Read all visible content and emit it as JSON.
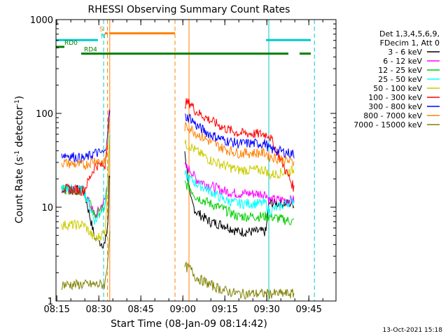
{
  "chart_data": {
    "type": "line",
    "title": "RHESSI Observing Summary Count Rates",
    "xlabel": "Start Time (08-Jan-09 08:14:42)",
    "ylabel_main": "Count Rate (s",
    "ylabel_sup1": "-1",
    "ylabel_mid": " detector",
    "ylabel_sup2": "-1",
    "ylabel_end": ")",
    "xlim": [
      0,
      100
    ],
    "ylim": [
      1,
      1000
    ],
    "yscale": "log",
    "x_ticks": [
      {
        "t": 0.3,
        "label": "08:15"
      },
      {
        "t": 15.3,
        "label": "08:30"
      },
      {
        "t": 30.3,
        "label": "08:45"
      },
      {
        "t": 45.3,
        "label": "09:00"
      },
      {
        "t": 60.3,
        "label": "09:15"
      },
      {
        "t": 75.3,
        "label": "09:30"
      },
      {
        "t": 90.3,
        "label": "09:45"
      }
    ],
    "y_ticks": [
      {
        "v": 1,
        "label": "1"
      },
      {
        "v": 10,
        "label": "10"
      },
      {
        "v": 100,
        "label": "100"
      },
      {
        "v": 1000,
        "label": "1000"
      }
    ],
    "legend_header": [
      "Det 1,3,4,5,6,9,",
      "FDecim 1, Att 0"
    ],
    "series": [
      {
        "name": "3 - 6 keV",
        "color": "#000000",
        "pts": [
          [
            2,
            16
          ],
          [
            10,
            15
          ],
          [
            14,
            4.5
          ],
          [
            17.5,
            4
          ],
          [
            18.6,
            7
          ],
          [
            19,
            20
          ],
          [
            21,
            30
          ],
          [
            46,
            40
          ],
          [
            48,
            12
          ],
          [
            50,
            9
          ],
          [
            55,
            7
          ],
          [
            60,
            6.5
          ],
          [
            65,
            5.5
          ],
          [
            75,
            5.5
          ],
          [
            76,
            11
          ],
          [
            85,
            11
          ]
        ],
        "gap": [
          [
            2,
            10
          ],
          [
            10,
            13.5
          ],
          [
            13.5,
            15
          ],
          [
            18.5,
            20
          ]
        ]
      },
      {
        "name": "6 - 12 keV",
        "color": "#ff00ff",
        "pts": [
          [
            2,
            16
          ],
          [
            10,
            15
          ],
          [
            14,
            8
          ],
          [
            17.5,
            12
          ],
          [
            18.6,
            20
          ],
          [
            19,
            50
          ],
          [
            21,
            80
          ],
          [
            48,
            25
          ],
          [
            50,
            20
          ],
          [
            55,
            17
          ],
          [
            60,
            15
          ],
          [
            65,
            14
          ],
          [
            75,
            14
          ],
          [
            76,
            12
          ],
          [
            85,
            12
          ]
        ]
      },
      {
        "name": "12 - 25 keV",
        "color": "#00cc00",
        "pts": [
          [
            2,
            16
          ],
          [
            10,
            15
          ],
          [
            14,
            8
          ],
          [
            17.5,
            10
          ],
          [
            18.6,
            20
          ],
          [
            19,
            50
          ],
          [
            21,
            80
          ],
          [
            48,
            16
          ],
          [
            50,
            13
          ],
          [
            55,
            11
          ],
          [
            60,
            9.5
          ],
          [
            65,
            8
          ],
          [
            75,
            8
          ],
          [
            76,
            8
          ],
          [
            85,
            7
          ]
        ]
      },
      {
        "name": "25 - 50 keV",
        "color": "#00ffff",
        "pts": [
          [
            2,
            16
          ],
          [
            10,
            15
          ],
          [
            14,
            7
          ],
          [
            17.5,
            11
          ],
          [
            18.6,
            20
          ],
          [
            19,
            50
          ],
          [
            21,
            80
          ],
          [
            48,
            20
          ],
          [
            50,
            18
          ],
          [
            55,
            15
          ],
          [
            60,
            12
          ],
          [
            65,
            11
          ],
          [
            75,
            11
          ],
          [
            76,
            9
          ],
          [
            85,
            12
          ]
        ]
      },
      {
        "name": "50 - 100 keV",
        "color": "#cccc00",
        "pts": [
          [
            2,
            6.5
          ],
          [
            10,
            6.5
          ],
          [
            14,
            4.5
          ],
          [
            17.5,
            5.5
          ],
          [
            18.6,
            20
          ],
          [
            19,
            60
          ],
          [
            21,
            90
          ],
          [
            48,
            45
          ],
          [
            50,
            40
          ],
          [
            55,
            32
          ],
          [
            60,
            28
          ],
          [
            65,
            25
          ],
          [
            75,
            25
          ],
          [
            76,
            22
          ],
          [
            85,
            25
          ]
        ]
      },
      {
        "name": "100 - 300 keV",
        "color": "#ff0000",
        "pts": [
          [
            2,
            16
          ],
          [
            10,
            15
          ],
          [
            14,
            28
          ],
          [
            17.5,
            28
          ],
          [
            18.6,
            60
          ],
          [
            19,
            100
          ],
          [
            21,
            120
          ],
          [
            48,
            130
          ],
          [
            50,
            105
          ],
          [
            55,
            85
          ],
          [
            60,
            70
          ],
          [
            65,
            62
          ],
          [
            75,
            60
          ],
          [
            76,
            60
          ],
          [
            85,
            16
          ]
        ]
      },
      {
        "name": "300 - 800 keV",
        "color": "#0000ff",
        "pts": [
          [
            2,
            37
          ],
          [
            10,
            33
          ],
          [
            14,
            38
          ],
          [
            17.5,
            38
          ],
          [
            18.6,
            70
          ],
          [
            19,
            100
          ],
          [
            21,
            120
          ],
          [
            48,
            90
          ],
          [
            50,
            75
          ],
          [
            55,
            60
          ],
          [
            60,
            52
          ],
          [
            65,
            48
          ],
          [
            75,
            48
          ],
          [
            76,
            42
          ],
          [
            85,
            37
          ]
        ]
      },
      {
        "name": "800 - 7000 keV",
        "color": "#ff8000",
        "pts": [
          [
            2,
            30
          ],
          [
            10,
            28
          ],
          [
            14,
            32
          ],
          [
            17.5,
            30
          ],
          [
            18.6,
            60
          ],
          [
            19,
            80
          ],
          [
            21,
            100
          ],
          [
            48,
            70
          ],
          [
            50,
            62
          ],
          [
            55,
            50
          ],
          [
            60,
            42
          ],
          [
            65,
            38
          ],
          [
            75,
            38
          ],
          [
            76,
            35
          ],
          [
            85,
            30
          ]
        ]
      },
      {
        "name": "7000 - 15000 keV",
        "color": "#808000",
        "pts": [
          [
            2,
            1.5
          ],
          [
            10,
            1.5
          ],
          [
            14,
            1.5
          ],
          [
            17.5,
            1.5
          ],
          [
            18.6,
            3
          ],
          [
            19,
            5
          ],
          [
            21,
            5
          ],
          [
            48,
            2.2
          ],
          [
            50,
            1.8
          ],
          [
            55,
            1.5
          ],
          [
            60,
            1.3
          ],
          [
            65,
            1.2
          ],
          [
            75,
            1.2
          ],
          [
            76,
            1.2
          ],
          [
            85,
            1.2
          ]
        ]
      }
    ],
    "state_bars": [
      {
        "label": "S",
        "color": "#ff8000",
        "segments": [
          [
            17.5,
            18.5
          ],
          [
            19,
            42.5
          ]
        ],
        "level": 0.96
      },
      {
        "label": "N",
        "color": "#00cccc",
        "segments": [
          [
            0,
            15
          ],
          [
            75,
            91
          ]
        ],
        "level": 0.92
      },
      {
        "label": "RD0",
        "color": "#008000",
        "segments": [
          [
            0,
            3
          ]
        ],
        "level": 0.88
      },
      {
        "label": "RD4",
        "color": "#008000",
        "segments": [
          [
            9,
            83
          ],
          [
            87,
            91
          ]
        ],
        "level": 0.84
      }
    ],
    "vlines": [
      {
        "t": 17.0,
        "color": "#00cccc",
        "dash": true
      },
      {
        "t": 18.4,
        "color": "#ff8000",
        "dash": true
      },
      {
        "t": 19.2,
        "color": "#ff8000",
        "dash": false
      },
      {
        "t": 42.5,
        "color": "#ff8000",
        "dash": true
      },
      {
        "t": 47.5,
        "color": "#ff8000",
        "dash": false
      },
      {
        "t": 76.0,
        "color": "#00cccc",
        "dash": false
      },
      {
        "t": 92.3,
        "color": "#00cccc",
        "dash": true
      }
    ],
    "timestamp": "13-Oct-2021 15:18"
  }
}
